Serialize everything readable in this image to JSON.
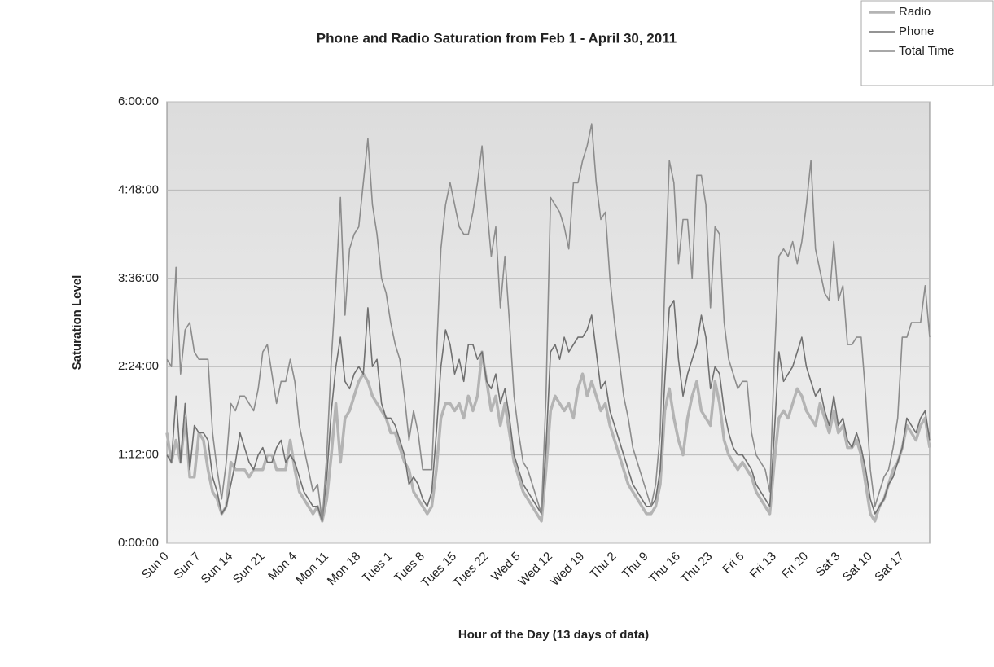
{
  "chart_data": {
    "type": "line",
    "title": "Phone and Radio Saturation from Feb 1 - April 30, 2011",
    "x_label": "Hour of the Day (13 days of data)",
    "y_label": "Saturation Level",
    "categories": [
      "Sun 0",
      null,
      null,
      null,
      null,
      null,
      null,
      "Sun 7",
      null,
      null,
      null,
      null,
      null,
      null,
      "Sun 14",
      null,
      null,
      null,
      null,
      null,
      null,
      "Sun 21",
      null,
      null,
      null,
      null,
      null,
      null,
      "Mon 4",
      null,
      null,
      null,
      null,
      null,
      null,
      "Mon 11",
      null,
      null,
      null,
      null,
      null,
      null,
      "Mon 18",
      null,
      null,
      null,
      null,
      null,
      null,
      "Tues 1",
      null,
      null,
      null,
      null,
      null,
      null,
      "Tues 8",
      null,
      null,
      null,
      null,
      null,
      null,
      "Tues 15",
      null,
      null,
      null,
      null,
      null,
      null,
      "Tues 22",
      null,
      null,
      null,
      null,
      null,
      null,
      "Wed 5",
      null,
      null,
      null,
      null,
      null,
      null,
      "Wed 12",
      null,
      null,
      null,
      null,
      null,
      null,
      "Wed 19",
      null,
      null,
      null,
      null,
      null,
      null,
      "Thu 2",
      null,
      null,
      null,
      null,
      null,
      null,
      "Thu 9",
      null,
      null,
      null,
      null,
      null,
      null,
      "Thu 16",
      null,
      null,
      null,
      null,
      null,
      null,
      "Thu 23",
      null,
      null,
      null,
      null,
      null,
      null,
      "Fri 6",
      null,
      null,
      null,
      null,
      null,
      null,
      "Fri 13",
      null,
      null,
      null,
      null,
      null,
      null,
      "Fri 20",
      null,
      null,
      null,
      null,
      null,
      null,
      "Sat 3",
      null,
      null,
      null,
      null,
      null,
      null,
      "Sat 10",
      null,
      null,
      null,
      null,
      null,
      null,
      "Sat 17",
      null,
      null,
      null,
      null,
      null,
      null
    ],
    "series": [
      {
        "name": "Radio",
        "color": "#b4b4b4",
        "width": 3.5,
        "values": [
          1.5,
          1.1,
          1.4,
          1.1,
          1.7,
          0.9,
          0.9,
          1.5,
          1.4,
          1.0,
          0.7,
          0.6,
          0.4,
          0.5,
          1.1,
          1.0,
          1.0,
          1.0,
          0.9,
          1.0,
          1.0,
          1.0,
          1.2,
          1.2,
          1.0,
          1.0,
          1.0,
          1.4,
          1.0,
          0.7,
          0.6,
          0.5,
          0.4,
          0.5,
          0.3,
          0.6,
          1.2,
          1.9,
          1.1,
          1.7,
          1.8,
          2.0,
          2.2,
          2.3,
          2.2,
          2.0,
          1.9,
          1.8,
          1.7,
          1.5,
          1.5,
          1.3,
          1.1,
          1.0,
          0.7,
          0.6,
          0.5,
          0.4,
          0.5,
          1.0,
          1.7,
          1.9,
          1.9,
          1.8,
          1.9,
          1.7,
          2.0,
          1.8,
          2.0,
          2.6,
          2.2,
          1.8,
          2.0,
          1.6,
          1.9,
          1.5,
          1.1,
          0.9,
          0.7,
          0.6,
          0.5,
          0.4,
          0.3,
          1.0,
          1.8,
          2.0,
          1.9,
          1.8,
          1.9,
          1.7,
          2.1,
          2.3,
          2.0,
          2.2,
          2.0,
          1.8,
          1.9,
          1.6,
          1.4,
          1.2,
          1.0,
          0.8,
          0.7,
          0.6,
          0.5,
          0.4,
          0.4,
          0.5,
          0.8,
          1.8,
          2.1,
          1.7,
          1.4,
          1.2,
          1.7,
          2.0,
          2.2,
          1.8,
          1.7,
          1.6,
          2.2,
          1.9,
          1.4,
          1.2,
          1.1,
          1.0,
          1.1,
          1.0,
          0.9,
          0.7,
          0.6,
          0.5,
          0.4,
          1.1,
          1.7,
          1.8,
          1.7,
          1.9,
          2.1,
          2.0,
          1.8,
          1.7,
          1.6,
          1.9,
          1.7,
          1.5,
          1.8,
          1.5,
          1.6,
          1.3,
          1.3,
          1.4,
          1.2,
          0.8,
          0.4,
          0.3,
          0.5,
          0.6,
          0.8,
          1.0,
          1.1,
          1.3,
          1.6,
          1.5,
          1.4,
          1.6,
          1.7,
          1.3
        ]
      },
      {
        "name": "Phone",
        "color": "#707070",
        "width": 1.6,
        "values": [
          1.2,
          1.1,
          2.0,
          1.1,
          1.9,
          1.0,
          1.6,
          1.5,
          1.5,
          1.4,
          0.9,
          0.7,
          0.4,
          0.5,
          0.8,
          1.1,
          1.5,
          1.3,
          1.1,
          1.0,
          1.2,
          1.3,
          1.1,
          1.1,
          1.3,
          1.4,
          1.1,
          1.2,
          1.1,
          0.9,
          0.7,
          0.6,
          0.5,
          0.5,
          0.3,
          0.9,
          1.8,
          2.4,
          2.8,
          2.2,
          2.1,
          2.3,
          2.4,
          2.3,
          3.2,
          2.4,
          2.5,
          1.9,
          1.7,
          1.7,
          1.6,
          1.4,
          1.2,
          0.8,
          0.9,
          0.8,
          0.6,
          0.5,
          0.7,
          1.5,
          2.4,
          2.9,
          2.7,
          2.3,
          2.5,
          2.2,
          2.7,
          2.7,
          2.5,
          2.6,
          2.2,
          2.1,
          2.3,
          1.9,
          2.1,
          1.7,
          1.2,
          1.0,
          0.8,
          0.7,
          0.6,
          0.5,
          0.4,
          1.3,
          2.6,
          2.7,
          2.5,
          2.8,
          2.6,
          2.7,
          2.8,
          2.8,
          2.9,
          3.1,
          2.6,
          2.1,
          2.2,
          1.8,
          1.6,
          1.4,
          1.2,
          1.0,
          0.8,
          0.7,
          0.6,
          0.5,
          0.5,
          0.6,
          1.0,
          2.2,
          3.2,
          3.3,
          2.5,
          2.0,
          2.3,
          2.5,
          2.7,
          3.1,
          2.8,
          2.1,
          2.4,
          2.3,
          1.8,
          1.5,
          1.3,
          1.2,
          1.2,
          1.1,
          1.0,
          0.8,
          0.7,
          0.6,
          0.5,
          1.5,
          2.6,
          2.2,
          2.3,
          2.4,
          2.6,
          2.8,
          2.4,
          2.2,
          2.0,
          2.1,
          1.8,
          1.6,
          2.0,
          1.6,
          1.7,
          1.4,
          1.3,
          1.5,
          1.3,
          1.0,
          0.6,
          0.4,
          0.5,
          0.6,
          0.8,
          0.9,
          1.1,
          1.3,
          1.7,
          1.6,
          1.5,
          1.7,
          1.8,
          1.4
        ]
      },
      {
        "name": "Total Time",
        "color": "#8c8c8c",
        "width": 1.6,
        "values": [
          2.5,
          2.4,
          3.75,
          2.3,
          2.9,
          3.0,
          2.6,
          2.5,
          2.5,
          2.5,
          1.5,
          1.0,
          0.6,
          1.1,
          1.9,
          1.8,
          2.0,
          2.0,
          1.9,
          1.8,
          2.1,
          2.6,
          2.7,
          2.3,
          1.9,
          2.2,
          2.2,
          2.5,
          2.2,
          1.6,
          1.3,
          1.0,
          0.7,
          0.8,
          0.3,
          1.2,
          2.5,
          3.5,
          4.7,
          3.1,
          4.0,
          4.2,
          4.3,
          4.9,
          5.5,
          4.6,
          4.2,
          3.6,
          3.4,
          3.0,
          2.7,
          2.5,
          2.0,
          1.4,
          1.8,
          1.5,
          1.0,
          1.0,
          1.0,
          2.5,
          4.0,
          4.6,
          4.9,
          4.6,
          4.3,
          4.2,
          4.2,
          4.5,
          4.9,
          5.4,
          4.6,
          3.9,
          4.3,
          3.2,
          3.9,
          3.0,
          2.0,
          1.5,
          1.1,
          1.0,
          0.8,
          0.6,
          0.4,
          2.0,
          4.7,
          4.6,
          4.5,
          4.3,
          4.0,
          4.9,
          4.9,
          5.2,
          5.4,
          5.7,
          4.9,
          4.4,
          4.5,
          3.6,
          3.0,
          2.5,
          2.0,
          1.7,
          1.3,
          1.1,
          0.9,
          0.7,
          0.5,
          0.8,
          1.5,
          3.5,
          5.2,
          4.9,
          3.8,
          4.4,
          4.4,
          3.6,
          5.0,
          5.0,
          4.6,
          3.2,
          4.3,
          4.2,
          3.0,
          2.5,
          2.3,
          2.1,
          2.2,
          2.2,
          1.5,
          1.2,
          1.1,
          1.0,
          0.7,
          2.5,
          3.9,
          4.0,
          3.9,
          4.1,
          3.8,
          4.1,
          4.6,
          5.2,
          4.0,
          3.7,
          3.4,
          3.3,
          4.1,
          3.3,
          3.5,
          2.7,
          2.7,
          2.8,
          2.8,
          2.0,
          1.0,
          0.5,
          0.7,
          0.9,
          1.0,
          1.3,
          1.7,
          2.8,
          2.8,
          3.0,
          3.0,
          3.0,
          3.5,
          2.8
        ]
      }
    ],
    "ylim": [
      0,
      6
    ],
    "yticks": [
      {
        "value": 0,
        "label": "0:00:00"
      },
      {
        "value": 1.2,
        "label": "1:12:00"
      },
      {
        "value": 2.4,
        "label": "2:24:00"
      },
      {
        "value": 3.6,
        "label": "3:36:00"
      },
      {
        "value": 4.8,
        "label": "4:48:00"
      },
      {
        "value": 6,
        "label": "6:00:00"
      }
    ],
    "grid": true,
    "legend": "top-right"
  }
}
